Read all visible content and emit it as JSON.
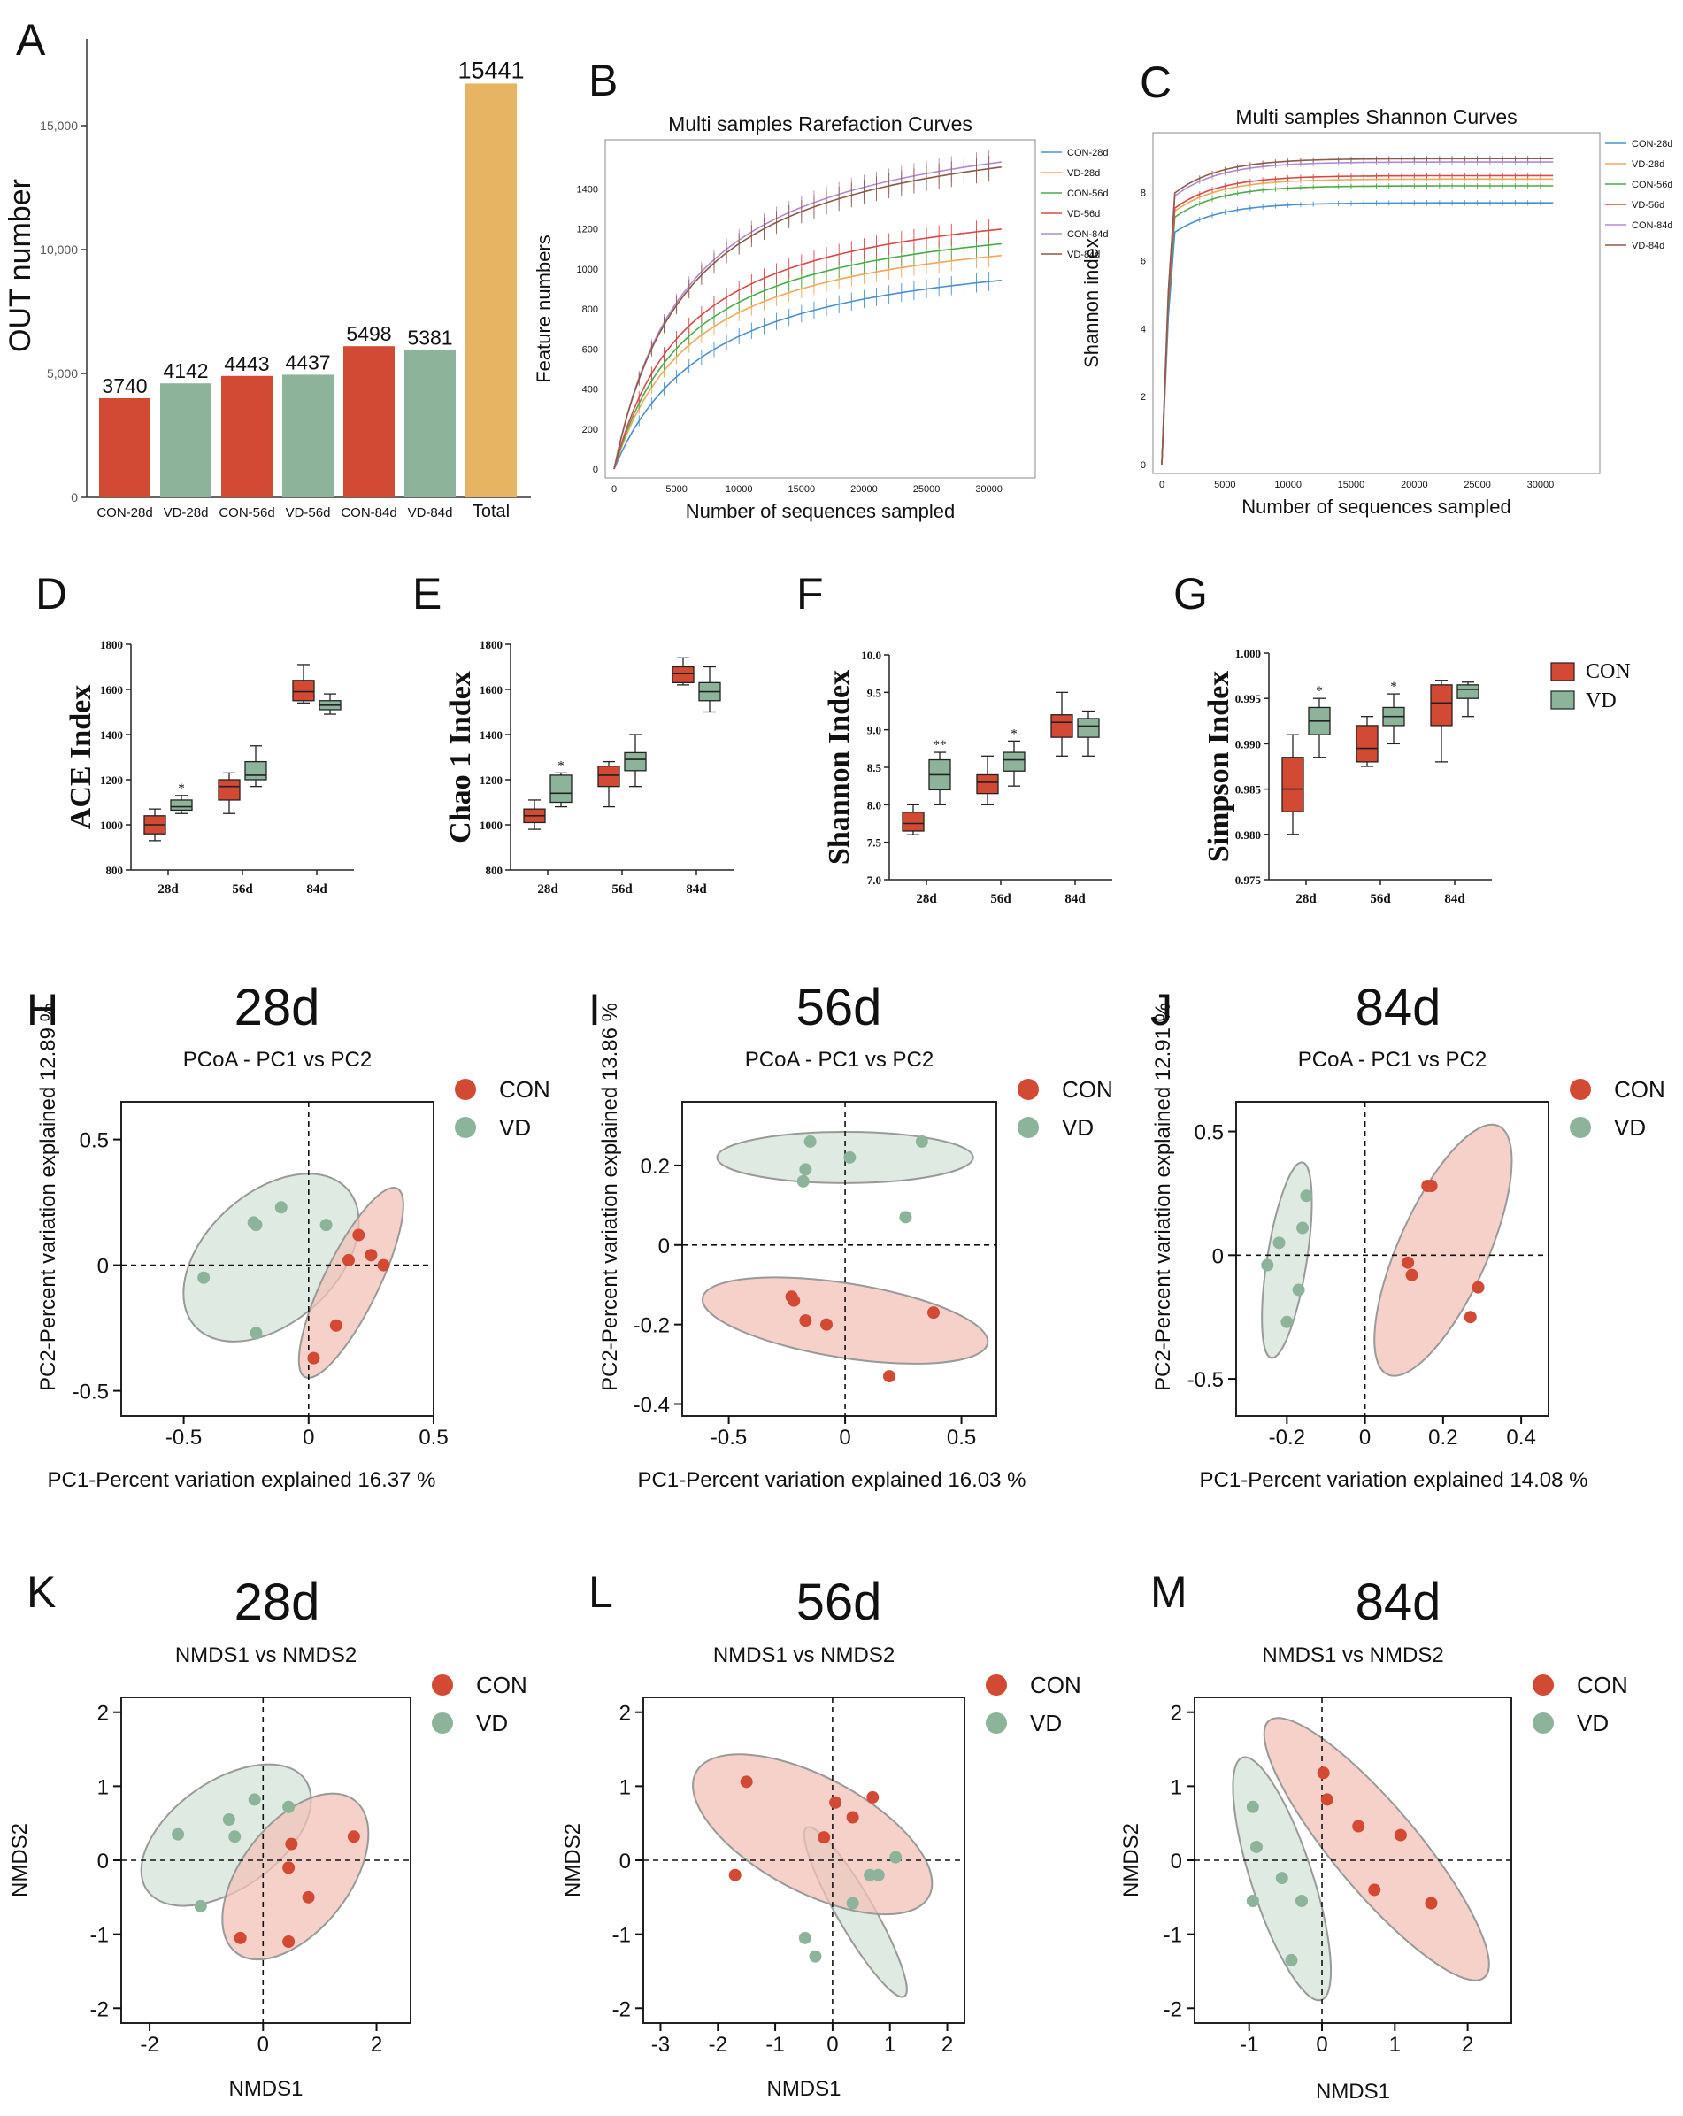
{
  "colors": {
    "con": "#d24a34",
    "vd": "#8db49b",
    "total": "#e6b462",
    "con_fill": "#f2c2b8",
    "vd_fill": "#d4e4d8",
    "curve_colors": [
      "#4a8fcf",
      "#f2a65a",
      "#4aaa4a",
      "#d84848",
      "#b08ad0",
      "#8a5a4a"
    ]
  },
  "chart_data": [
    {
      "panel": "A",
      "type": "bar",
      "ylabel": "OUT number",
      "categories": [
        "CON-28d",
        "VD-28d",
        "CON-56d",
        "VD-56d",
        "CON-84d",
        "VD-84d",
        "Total"
      ],
      "values": [
        3740,
        4142,
        4443,
        4437,
        5498,
        5381,
        15441
      ],
      "bar_heights": [
        4000,
        4600,
        4900,
        4950,
        6100,
        5950,
        16700
      ],
      "groups": [
        "con",
        "vd",
        "con",
        "vd",
        "con",
        "vd",
        "total"
      ],
      "ylim": [
        0,
        18500
      ],
      "yticks": [
        0,
        5000,
        10000,
        15000
      ],
      "ytick_labels": [
        "0",
        "5,000",
        "10,000",
        "15,000"
      ]
    },
    {
      "panel": "B",
      "type": "line",
      "title": "Multi samples Rarefaction Curves",
      "xlabel": "Number of sequences sampled",
      "ylabel": "Feature numbers",
      "xlim": [
        0,
        33000
      ],
      "ylim": [
        0,
        1600
      ],
      "xticks": [
        0,
        5000,
        10000,
        15000,
        20000,
        25000,
        30000
      ],
      "yticks": [
        0,
        200,
        400,
        600,
        800,
        1000,
        1200,
        1400
      ],
      "series": [
        {
          "name": "CON-28d",
          "asymptote": 1180,
          "half": 7800,
          "end": 900
        },
        {
          "name": "VD-28d",
          "asymptote": 1290,
          "half": 6500,
          "end": 1030
        },
        {
          "name": "CON-56d",
          "asymptote": 1350,
          "half": 6200,
          "end": 1090
        },
        {
          "name": "VD-56d",
          "asymptote": 1430,
          "half": 6000,
          "end": 1160
        },
        {
          "name": "CON-84d",
          "asymptote": 1830,
          "half": 6000,
          "end": 1480
        },
        {
          "name": "VD-84d",
          "asymptote": 1800,
          "half": 6000,
          "end": 1460
        }
      ]
    },
    {
      "panel": "C",
      "type": "line",
      "title": "Multi samples Shannon Curves",
      "xlabel": "Number of sequences sampled",
      "ylabel": "Shannon index",
      "xlim": [
        0,
        34000
      ],
      "ylim": [
        0,
        9.5
      ],
      "xticks": [
        0,
        5000,
        10000,
        15000,
        20000,
        25000,
        30000
      ],
      "yticks": [
        0,
        2,
        4,
        6,
        8
      ],
      "series": [
        {
          "name": "CON-28d",
          "end": 7.7
        },
        {
          "name": "VD-28d",
          "end": 8.4
        },
        {
          "name": "CON-56d",
          "end": 8.2
        },
        {
          "name": "VD-56d",
          "end": 8.5
        },
        {
          "name": "CON-84d",
          "end": 8.9
        },
        {
          "name": "VD-84d",
          "end": 9.0
        }
      ]
    },
    {
      "panel": "D",
      "type": "box",
      "ylabel": "ACE Index",
      "categories": [
        "28d",
        "56d",
        "84d"
      ],
      "ylim": [
        800,
        1800
      ],
      "yticks": [
        800,
        1000,
        1200,
        1400,
        1600,
        1800
      ],
      "boxes": [
        {
          "group": "con",
          "x": 0,
          "min": 930,
          "q1": 960,
          "med": 1000,
          "q3": 1040,
          "max": 1070
        },
        {
          "group": "vd",
          "x": 0,
          "min": 1050,
          "q1": 1065,
          "med": 1080,
          "q3": 1110,
          "max": 1130
        },
        {
          "group": "con",
          "x": 1,
          "min": 1050,
          "q1": 1110,
          "med": 1170,
          "q3": 1200,
          "max": 1230
        },
        {
          "group": "vd",
          "x": 1,
          "min": 1170,
          "q1": 1200,
          "med": 1220,
          "q3": 1280,
          "max": 1350
        },
        {
          "group": "con",
          "x": 2,
          "min": 1540,
          "q1": 1550,
          "med": 1590,
          "q3": 1640,
          "max": 1710
        },
        {
          "group": "vd",
          "x": 2,
          "min": 1490,
          "q1": 1510,
          "med": 1530,
          "q3": 1550,
          "max": 1580
        }
      ],
      "annotations": [
        {
          "x": 0,
          "text": "*"
        }
      ]
    },
    {
      "panel": "E",
      "type": "box",
      "ylabel": "Chao 1 Index",
      "categories": [
        "28d",
        "56d",
        "84d"
      ],
      "ylim": [
        800,
        1800
      ],
      "yticks": [
        800,
        1000,
        1200,
        1400,
        1600,
        1800
      ],
      "boxes": [
        {
          "group": "con",
          "x": 0,
          "min": 980,
          "q1": 1010,
          "med": 1040,
          "q3": 1070,
          "max": 1110
        },
        {
          "group": "vd",
          "x": 0,
          "min": 1080,
          "q1": 1100,
          "med": 1140,
          "q3": 1220,
          "max": 1230
        },
        {
          "group": "con",
          "x": 1,
          "min": 1080,
          "q1": 1170,
          "med": 1220,
          "q3": 1260,
          "max": 1280
        },
        {
          "group": "vd",
          "x": 1,
          "min": 1170,
          "q1": 1240,
          "med": 1290,
          "q3": 1320,
          "max": 1400
        },
        {
          "group": "con",
          "x": 2,
          "min": 1620,
          "q1": 1630,
          "med": 1670,
          "q3": 1700,
          "max": 1740
        },
        {
          "group": "vd",
          "x": 2,
          "min": 1500,
          "q1": 1550,
          "med": 1590,
          "q3": 1630,
          "max": 1700
        }
      ],
      "annotations": [
        {
          "x": 0,
          "text": "*"
        }
      ]
    },
    {
      "panel": "F",
      "type": "box",
      "ylabel": "Shannon Index",
      "categories": [
        "28d",
        "56d",
        "84d"
      ],
      "ylim": [
        7.0,
        10.0
      ],
      "yticks": [
        7.0,
        7.5,
        8.0,
        8.5,
        9.0,
        9.5,
        10.0
      ],
      "boxes": [
        {
          "group": "con",
          "x": 0,
          "min": 7.6,
          "q1": 7.65,
          "med": 7.75,
          "q3": 7.9,
          "max": 8.0
        },
        {
          "group": "vd",
          "x": 0,
          "min": 8.0,
          "q1": 8.2,
          "med": 8.4,
          "q3": 8.6,
          "max": 8.7
        },
        {
          "group": "con",
          "x": 1,
          "min": 8.0,
          "q1": 8.15,
          "med": 8.3,
          "q3": 8.4,
          "max": 8.65
        },
        {
          "group": "vd",
          "x": 1,
          "min": 8.25,
          "q1": 8.45,
          "med": 8.6,
          "q3": 8.7,
          "max": 8.85
        },
        {
          "group": "con",
          "x": 2,
          "min": 8.65,
          "q1": 8.9,
          "med": 9.1,
          "q3": 9.2,
          "max": 9.5
        },
        {
          "group": "vd",
          "x": 2,
          "min": 8.65,
          "q1": 8.9,
          "med": 9.05,
          "q3": 9.15,
          "max": 9.25
        }
      ],
      "annotations": [
        {
          "x": 0,
          "text": "**"
        },
        {
          "x": 1,
          "text": "*"
        }
      ]
    },
    {
      "panel": "G",
      "type": "box",
      "ylabel": "Simpson Index",
      "categories": [
        "28d",
        "56d",
        "84d"
      ],
      "ylim": [
        0.975,
        1.0
      ],
      "yticks": [
        0.975,
        0.98,
        0.985,
        0.99,
        0.995,
        1.0
      ],
      "boxes": [
        {
          "group": "con",
          "x": 0,
          "min": 0.98,
          "q1": 0.9825,
          "med": 0.985,
          "q3": 0.9885,
          "max": 0.991
        },
        {
          "group": "vd",
          "x": 0,
          "min": 0.9885,
          "q1": 0.991,
          "med": 0.9925,
          "q3": 0.994,
          "max": 0.995
        },
        {
          "group": "con",
          "x": 1,
          "min": 0.9875,
          "q1": 0.988,
          "med": 0.9895,
          "q3": 0.992,
          "max": 0.993
        },
        {
          "group": "vd",
          "x": 1,
          "min": 0.99,
          "q1": 0.992,
          "med": 0.993,
          "q3": 0.994,
          "max": 0.9955
        },
        {
          "group": "con",
          "x": 2,
          "min": 0.988,
          "q1": 0.992,
          "med": 0.9945,
          "q3": 0.9965,
          "max": 0.997
        },
        {
          "group": "vd",
          "x": 2,
          "min": 0.993,
          "q1": 0.995,
          "med": 0.996,
          "q3": 0.9965,
          "max": 0.9968
        }
      ],
      "annotations": [
        {
          "x": 0,
          "text": "*"
        },
        {
          "x": 1,
          "text": "*"
        }
      ]
    },
    {
      "panel": "H",
      "type": "scatter",
      "heading": "28d",
      "title": "PCoA - PC1 vs PC2",
      "xlabel": "PC1-Percent variation explained 16.37 %",
      "ylabel": "PC2-Percent variation explained 12.89 %",
      "xlim": [
        -0.75,
        0.5
      ],
      "ylim": [
        -0.6,
        0.65
      ],
      "xticks": [
        -0.5,
        0,
        0.5
      ],
      "yticks": [
        -0.5,
        0,
        0.5
      ],
      "tick_labels": [
        "-0.5",
        "0",
        "0.5"
      ],
      "con": [
        [
          0.2,
          0.12
        ],
        [
          0.25,
          0.04
        ],
        [
          0.16,
          0.02
        ],
        [
          0.3,
          0.0
        ],
        [
          0.11,
          -0.24
        ],
        [
          0.02,
          -0.37
        ]
      ],
      "vd": [
        [
          -0.42,
          -0.05
        ],
        [
          -0.22,
          0.17
        ],
        [
          -0.21,
          0.16
        ],
        [
          -0.11,
          0.23
        ],
        [
          0.07,
          0.16
        ],
        [
          -0.21,
          -0.27
        ]
      ],
      "con_ellipse": {
        "cx": 0.17,
        "cy": -0.07,
        "rx": 0.42,
        "ry": 0.11,
        "angle": 64
      },
      "vd_ellipse": {
        "cx": -0.15,
        "cy": 0.03,
        "rx": 0.41,
        "ry": 0.26,
        "angle": 42
      }
    },
    {
      "panel": "I",
      "type": "scatter",
      "heading": "56d",
      "title": "PCoA - PC1 vs PC2",
      "xlabel": "PC1-Percent variation explained 16.03 %",
      "ylabel": "PC2-Percent variation explained 13.86 %",
      "xlim": [
        -0.7,
        0.65
      ],
      "ylim": [
        -0.43,
        0.36
      ],
      "xticks": [
        -0.5,
        0,
        0.5
      ],
      "yticks": [
        -0.4,
        -0.2,
        0,
        0.2
      ],
      "tick_labels": [
        "-0.5",
        "0",
        "0.5"
      ],
      "ytick_labels": [
        "-0.4",
        "-0.2",
        "0",
        "0.2"
      ],
      "con": [
        [
          -0.23,
          -0.13
        ],
        [
          -0.22,
          -0.14
        ],
        [
          -0.17,
          -0.19
        ],
        [
          -0.08,
          -0.2
        ],
        [
          0.38,
          -0.17
        ],
        [
          0.19,
          -0.33
        ]
      ],
      "vd": [
        [
          -0.15,
          0.26
        ],
        [
          -0.17,
          0.19
        ],
        [
          -0.18,
          0.16
        ],
        [
          0.02,
          0.22
        ],
        [
          0.33,
          0.26
        ],
        [
          0.26,
          0.07
        ]
      ],
      "con_ellipse": {
        "cx": 0.0,
        "cy": -0.19,
        "rx": 0.62,
        "ry": 0.16,
        "angle": -9
      },
      "vd_ellipse": {
        "cx": 0.0,
        "cy": 0.22,
        "rx": 0.55,
        "ry": 0.11,
        "angle": 0
      }
    },
    {
      "panel": "J",
      "type": "scatter",
      "heading": "84d",
      "title": "PCoA - PC1 vs PC2",
      "xlabel": "PC1-Percent variation explained 14.08 %",
      "ylabel": "PC2-Percent variation explained 12.91 %",
      "xlim": [
        -0.33,
        0.47
      ],
      "ylim": [
        -0.65,
        0.62
      ],
      "xticks": [
        -0.2,
        0,
        0.2,
        0.4
      ],
      "yticks": [
        -0.5,
        0,
        0.5
      ],
      "tick_labels": [
        "-0.2",
        "0",
        "0.2",
        "0.4"
      ],
      "ytick_labels": [
        "-0.5",
        "0",
        "0.5"
      ],
      "con": [
        [
          0.16,
          0.28
        ],
        [
          0.17,
          0.28
        ],
        [
          0.11,
          -0.03
        ],
        [
          0.12,
          -0.08
        ],
        [
          0.29,
          -0.13
        ],
        [
          0.27,
          -0.25
        ]
      ],
      "vd": [
        [
          -0.15,
          0.24
        ],
        [
          -0.16,
          0.11
        ],
        [
          -0.22,
          0.05
        ],
        [
          -0.25,
          -0.04
        ],
        [
          -0.17,
          -0.14
        ],
        [
          -0.2,
          -0.27
        ]
      ],
      "con_ellipse": {
        "cx": 0.2,
        "cy": 0.02,
        "rx": 0.55,
        "ry": 0.18,
        "angle": 66
      },
      "vd_ellipse": {
        "cx": -0.2,
        "cy": -0.02,
        "rx": 0.4,
        "ry": 0.08,
        "angle": 81
      }
    },
    {
      "panel": "K",
      "type": "scatter",
      "heading": "28d",
      "title": "NMDS1 vs NMDS2",
      "xlabel": "NMDS1",
      "ylabel": "NMDS2",
      "xlim": [
        -2.5,
        2.6
      ],
      "ylim": [
        -2.2,
        2.2
      ],
      "xticks": [
        -2,
        0,
        2
      ],
      "yticks": [
        -2,
        -1,
        0,
        1,
        2
      ],
      "tick_labels": [
        "-2",
        "0",
        "2"
      ],
      "ytick_labels": [
        "-2",
        "-1",
        "0",
        "1",
        "2"
      ],
      "con": [
        [
          0.5,
          0.22
        ],
        [
          1.6,
          0.32
        ],
        [
          0.45,
          -0.1
        ],
        [
          0.8,
          -0.5
        ],
        [
          -0.4,
          -1.05
        ],
        [
          0.45,
          -1.1
        ]
      ],
      "vd": [
        [
          -1.5,
          0.35
        ],
        [
          -0.6,
          0.55
        ],
        [
          -0.5,
          0.32
        ],
        [
          -0.15,
          0.82
        ],
        [
          0.45,
          0.72
        ],
        [
          -1.1,
          -0.62
        ]
      ],
      "con_ellipse": {
        "cx": 0.57,
        "cy": -0.22,
        "rx": 1.7,
        "ry": 0.95,
        "angle": 52
      },
      "vd_ellipse": {
        "cx": -0.65,
        "cy": 0.34,
        "rx": 1.7,
        "ry": 0.95,
        "angle": 35
      }
    },
    {
      "panel": "L",
      "type": "scatter",
      "heading": "56d",
      "title": "NMDS1 vs NMDS2",
      "xlabel": "NMDS1",
      "ylabel": "NMDS2",
      "xlim": [
        -3.3,
        2.3
      ],
      "ylim": [
        -2.2,
        2.2
      ],
      "xticks": [
        -3,
        -2,
        -1,
        0,
        1,
        2
      ],
      "yticks": [
        -2,
        -1,
        0,
        1,
        2
      ],
      "tick_labels": [
        "-3",
        "-2",
        "-1",
        "0",
        "1",
        "2"
      ],
      "ytick_labels": [
        "-2",
        "-1",
        "0",
        "1",
        "2"
      ],
      "con": [
        [
          -1.5,
          1.06
        ],
        [
          0.05,
          0.78
        ],
        [
          0.7,
          0.85
        ],
        [
          0.35,
          0.58
        ],
        [
          -0.15,
          0.31
        ],
        [
          -1.7,
          -0.2
        ]
      ],
      "vd": [
        [
          1.1,
          0.04
        ],
        [
          0.65,
          -0.2
        ],
        [
          0.8,
          -0.2
        ],
        [
          0.35,
          -0.58
        ],
        [
          -0.48,
          -1.05
        ],
        [
          -0.3,
          -1.3
        ]
      ],
      "con_ellipse": {
        "cx": -0.35,
        "cy": 0.35,
        "rx": 2.3,
        "ry": 1.0,
        "angle": -28
      },
      "vd_ellipse": {
        "cx": 0.4,
        "cy": -0.7,
        "rx": 1.7,
        "ry": 0.32,
        "angle": -60
      }
    },
    {
      "panel": "M",
      "type": "scatter",
      "heading": "84d",
      "title": "NMDS1 vs NMDS2",
      "xlabel": "NMDS1",
      "ylabel": "NMDS2",
      "xlim": [
        -1.75,
        2.6
      ],
      "ylim": [
        -2.2,
        2.2
      ],
      "xticks": [
        -1,
        0,
        1,
        2
      ],
      "yticks": [
        -2,
        -1,
        0,
        1,
        2
      ],
      "tick_labels": [
        "-1",
        "0",
        "1",
        "2"
      ],
      "ytick_labels": [
        "-2",
        "-1",
        "0",
        "1",
        "2"
      ],
      "con": [
        [
          0.02,
          1.18
        ],
        [
          0.07,
          0.82
        ],
        [
          0.5,
          0.46
        ],
        [
          1.08,
          0.34
        ],
        [
          0.72,
          -0.4
        ],
        [
          1.5,
          -0.58
        ]
      ],
      "vd": [
        [
          -0.95,
          0.72
        ],
        [
          -0.9,
          0.18
        ],
        [
          -0.55,
          -0.24
        ],
        [
          -0.95,
          -0.55
        ],
        [
          -0.28,
          -0.55
        ],
        [
          -0.42,
          -1.35
        ]
      ],
      "con_ellipse": {
        "cx": 0.75,
        "cy": 0.15,
        "rx": 2.3,
        "ry": 0.58,
        "angle": -50
      },
      "vd_ellipse": {
        "cx": -0.55,
        "cy": -0.25,
        "rx": 1.75,
        "ry": 0.42,
        "angle": -72
      }
    }
  ],
  "legend": {
    "con": "CON",
    "vd": "VD"
  },
  "panel_letters": [
    "A",
    "B",
    "C",
    "D",
    "E",
    "F",
    "G",
    "H",
    "I",
    "J",
    "K",
    "L",
    "M"
  ]
}
